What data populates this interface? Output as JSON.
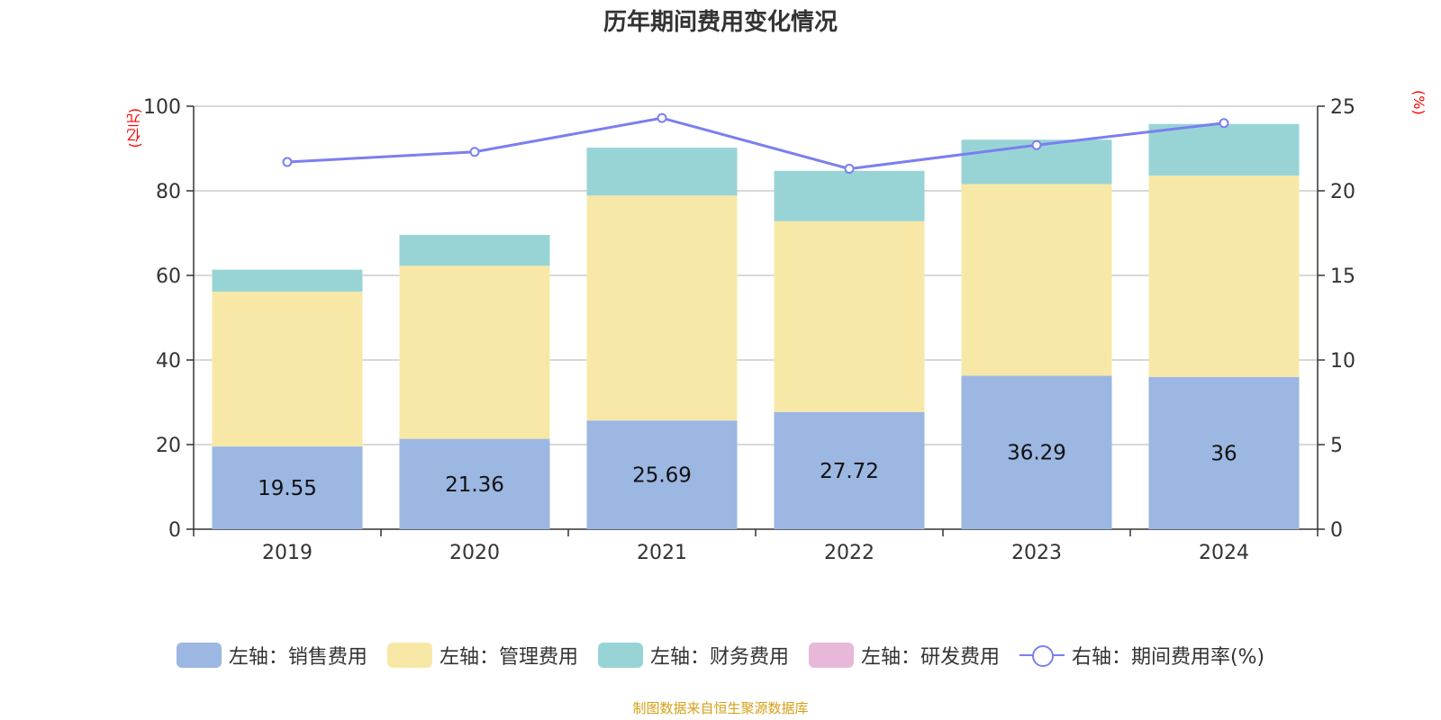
{
  "chart_data": {
    "type": "bar",
    "title": "历年期间费用变化情况",
    "categories": [
      "2019",
      "2020",
      "2021",
      "2022",
      "2023",
      "2024"
    ],
    "left_axis": {
      "unit": "(亿元)",
      "ylim": [
        0,
        100
      ],
      "ticks": [
        "0",
        "20",
        "40",
        "60",
        "80",
        "100"
      ]
    },
    "right_axis": {
      "unit": "(%)",
      "ylim": [
        0,
        25
      ],
      "ticks": [
        "0",
        "5",
        "10",
        "15",
        "20",
        "25"
      ]
    },
    "series": [
      {
        "name": "左轴：销售费用",
        "kind": "bar",
        "axis": "left",
        "color": "#9bb7e2",
        "values": [
          19.55,
          21.36,
          25.69,
          27.72,
          36.29,
          36
        ],
        "labels": [
          "19.55",
          "21.36",
          "25.69",
          "27.72",
          "36.29",
          "36"
        ]
      },
      {
        "name": "左轴：管理费用",
        "kind": "bar",
        "axis": "left",
        "color": "#f8e8a8",
        "values": [
          36.6,
          40.9,
          53.2,
          45.1,
          45.3,
          47.6
        ]
      },
      {
        "name": "左轴：财务费用",
        "kind": "bar",
        "axis": "left",
        "color": "#98d4d5",
        "values": [
          5.2,
          7.3,
          11.3,
          11.9,
          10.5,
          12.2
        ]
      },
      {
        "name": "左轴：研发费用",
        "kind": "bar",
        "axis": "left",
        "color": "#e8b8d8",
        "values": [
          0,
          0,
          0,
          0,
          0,
          0
        ]
      },
      {
        "name": "右轴：期间费用率(%)",
        "kind": "line",
        "axis": "right",
        "color": "#7b7fef",
        "values": [
          21.7,
          22.3,
          24.3,
          21.3,
          22.7,
          24.0
        ]
      }
    ],
    "grid": true,
    "legend_position": "bottom"
  },
  "source_note": "制图数据来自恒生聚源数据库"
}
